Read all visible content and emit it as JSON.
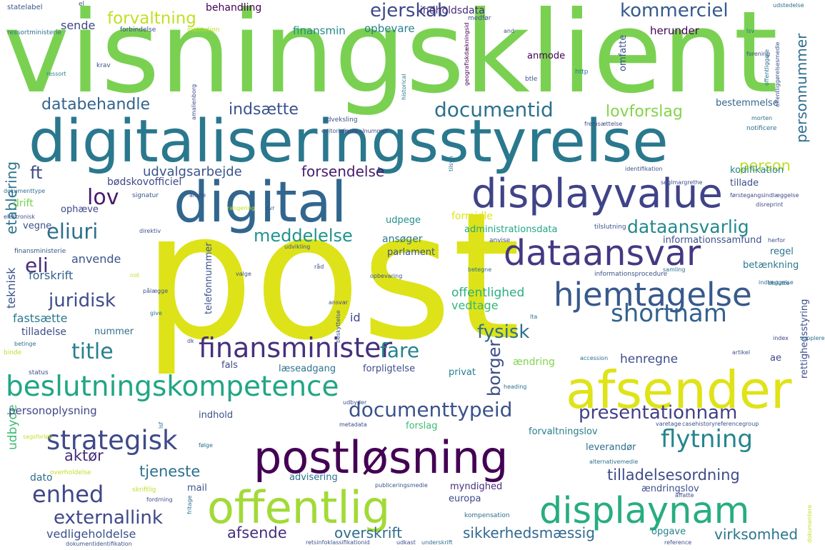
{
  "word_cloud": {
    "words": [
      {
        "text": "visningsklient",
        "color": "#7ad151"
      },
      {
        "text": "post",
        "color": "#dde318"
      },
      {
        "text": "digitaliseringsstyrelse",
        "color": "#2a788e"
      },
      {
        "text": "digital",
        "color": "#31668e"
      },
      {
        "text": "displayvalue",
        "color": "#404387"
      },
      {
        "text": "dataansvar",
        "color": "#453882"
      },
      {
        "text": "hjemtagelse",
        "color": "#38598c"
      },
      {
        "text": "afsender",
        "color": "#dfe318"
      },
      {
        "text": "postløsning",
        "color": "#440154"
      },
      {
        "text": "offentlig",
        "color": "#a2da37"
      },
      {
        "text": "displaynam",
        "color": "#27ad81"
      },
      {
        "text": "beslutningskompetence",
        "color": "#21a685"
      },
      {
        "text": "finansminister",
        "color": "#46307e"
      },
      {
        "text": "shortnam",
        "color": "#33638d"
      },
      {
        "text": "strategisk",
        "color": "#3e4a89"
      },
      {
        "text": "flytning",
        "color": "#25858e"
      },
      {
        "text": "documentid",
        "color": "#2d708e"
      },
      {
        "text": "documenttypeid",
        "color": "#3a538b"
      },
      {
        "text": "presentationnam",
        "color": "#424086"
      },
      {
        "text": "enhed",
        "color": "#3f4788"
      },
      {
        "text": "ejerskab",
        "color": "#3f4889"
      },
      {
        "text": "kommerciel",
        "color": "#375a8c"
      },
      {
        "text": "forvaltning",
        "color": "#c2df23"
      },
      {
        "text": "meddelelse",
        "color": "#20938c"
      },
      {
        "text": "dataansvarlig",
        "color": "#23888e"
      },
      {
        "text": "juridisk",
        "color": "#3e4c8a"
      },
      {
        "text": "eliuri",
        "color": "#2e6f8e"
      },
      {
        "text": "lov",
        "color": "#48196b"
      },
      {
        "text": "eli",
        "color": "#472c7a"
      },
      {
        "text": "title",
        "color": "#27808e"
      },
      {
        "text": "fysisk",
        "color": "#2c718e"
      },
      {
        "text": "fare",
        "color": "#26828e"
      },
      {
        "text": "borger",
        "color": "#3d4e8a"
      },
      {
        "text": "externallink",
        "color": "#3f4889"
      },
      {
        "text": "databehandle",
        "color": "#33638d"
      },
      {
        "text": "indsætte",
        "color": "#3b528b"
      },
      {
        "text": "lovforslag",
        "color": "#84d44b"
      },
      {
        "text": "personnummer",
        "color": "#2e6e8e"
      },
      {
        "text": "etablering",
        "color": "#2c738e"
      },
      {
        "text": "ft",
        "color": "#3e4a89"
      },
      {
        "text": "udvalgsarbejde",
        "color": "#3a548c"
      },
      {
        "text": "forsendelse",
        "color": "#481b6d"
      },
      {
        "text": "person",
        "color": "#c0df25"
      },
      {
        "text": "tilladelsesordning",
        "color": "#3d4d8a"
      },
      {
        "text": "tjeneste",
        "color": "#2d718e"
      },
      {
        "text": "aktør",
        "color": "#472d7b"
      },
      {
        "text": "afsende",
        "color": "#472f7d"
      },
      {
        "text": "overskrift",
        "color": "#2f6c8e"
      },
      {
        "text": "sikkerhedsmæssig",
        "color": "#31688e"
      },
      {
        "text": "virksomhed",
        "color": "#2a768e"
      },
      {
        "text": "vedligeholdelse",
        "color": "#3b528b"
      },
      {
        "text": "udbyde",
        "color": "#3ebc73"
      },
      {
        "text": "offentlighed",
        "color": "#29af7f"
      },
      {
        "text": "vedtage",
        "color": "#35b779"
      },
      {
        "text": "henregne",
        "color": "#3d4e8a"
      },
      {
        "text": "fastsætte",
        "color": "#2a788e"
      },
      {
        "text": "forskrift",
        "color": "#33638d"
      },
      {
        "text": "anvende",
        "color": "#3a548c"
      },
      {
        "text": "teknisk",
        "color": "#3b528b"
      },
      {
        "text": "herunder",
        "color": "#440154"
      },
      {
        "text": "indholdsdata",
        "color": "#472c7a"
      },
      {
        "text": "opbevare",
        "color": "#277f8e"
      },
      {
        "text": "finansmin",
        "color": "#238a8d"
      },
      {
        "text": "sende",
        "color": "#3f4788"
      },
      {
        "text": "behandling",
        "color": "#440154"
      },
      {
        "text": "ansøger",
        "color": "#2a788e"
      },
      {
        "text": "parlament",
        "color": "#3a538b"
      },
      {
        "text": "udpege",
        "color": "#21908d"
      },
      {
        "text": "formidle",
        "color": "#dfe318"
      },
      {
        "text": "administrationsdata",
        "color": "#22a785"
      },
      {
        "text": "informationssamfund",
        "color": "#3b528b"
      },
      {
        "text": "kodifikation",
        "color": "#26828e"
      },
      {
        "text": "tillade",
        "color": "#3d4e8a"
      },
      {
        "text": "drift",
        "color": "#7ad151"
      },
      {
        "text": "ophæve",
        "color": "#3f4889"
      },
      {
        "text": "vegne",
        "color": "#3b528b"
      },
      {
        "text": "bødskovofficiel",
        "color": "#3e4989"
      },
      {
        "text": "telefonnummer",
        "color": "#3a548c"
      },
      {
        "text": "nummer",
        "color": "#2e6f8e"
      },
      {
        "text": "tilladelse",
        "color": "#3e4c8a"
      },
      {
        "text": "id",
        "color": "#3f4889"
      },
      {
        "text": "bestemmelse",
        "color": "#31668e"
      },
      {
        "text": "omfatte",
        "color": "#3a538b"
      },
      {
        "text": "anmode",
        "color": "#440154"
      },
      {
        "text": "regel",
        "color": "#2c728e"
      },
      {
        "text": "betænkning",
        "color": "#2a788e"
      },
      {
        "text": "rettighedsstyring",
        "color": "#3d4e8a"
      },
      {
        "text": "ae",
        "color": "#3f4889"
      },
      {
        "text": "personoplysning",
        "color": "#3f4788"
      },
      {
        "text": "fals",
        "color": "#3f4889"
      },
      {
        "text": "læseadgang",
        "color": "#2c738e"
      },
      {
        "text": "forpligtelse",
        "color": "#3e4c8a"
      },
      {
        "text": "privat",
        "color": "#277f8e"
      },
      {
        "text": "ændring",
        "color": "#84d44b"
      },
      {
        "text": "indhold",
        "color": "#3b528b"
      },
      {
        "text": "forslag",
        "color": "#3ebc73"
      },
      {
        "text": "forvaltningslov",
        "color": "#287d8e"
      },
      {
        "text": "leverandør",
        "color": "#2e6e8e"
      },
      {
        "text": "advisering",
        "color": "#2c718e"
      },
      {
        "text": "myndighed",
        "color": "#472d7b"
      },
      {
        "text": "europa",
        "color": "#3e4a89"
      },
      {
        "text": "ændringslov",
        "color": "#3b528b"
      },
      {
        "text": "dato",
        "color": "#2e6e8e"
      },
      {
        "text": "mail",
        "color": "#3a548c"
      },
      {
        "text": "opgave",
        "color": "#26828e"
      },
      {
        "text": "kompensation",
        "color": "#2e6f8e"
      },
      {
        "text": "udkast",
        "color": "#3e4c8a"
      },
      {
        "text": "statelabel",
        "color": "#3b528b"
      },
      {
        "text": "ressortministerie",
        "color": "#2e6f8e"
      },
      {
        "text": "forbindelse",
        "color": "#3e4a89"
      },
      {
        "text": "institution",
        "color": "#c0df25"
      },
      {
        "text": "el",
        "color": "#3b528b"
      },
      {
        "text": "medfør",
        "color": "#3b528b"
      },
      {
        "text": "and",
        "color": "#3e4a89"
      },
      {
        "text": "lsv",
        "color": "#2c728e"
      },
      {
        "text": "krav",
        "color": "#3b528b"
      },
      {
        "text": "ressort",
        "color": "#26828e"
      },
      {
        "text": "amalienborg",
        "color": "#3e4a89"
      },
      {
        "text": "historical",
        "color": "#2a788e"
      },
      {
        "text": "geografiskdækningsid",
        "color": "#440154"
      },
      {
        "text": "btle",
        "color": "#3b528b"
      },
      {
        "text": "http",
        "color": "#2a788e"
      },
      {
        "text": "forening",
        "color": "#3e4c8a"
      },
      {
        "text": "offentliggøre",
        "color": "#2c728e"
      },
      {
        "text": "offentliggørelsesmedie",
        "color": "#3b528b"
      },
      {
        "text": "udstedelse",
        "color": "#2e6f8e"
      },
      {
        "text": "udveksling",
        "color": "#3b528b"
      },
      {
        "text": "editorialnote",
        "color": "#3b528b"
      },
      {
        "text": "journalnummer",
        "color": "#3e4a89"
      },
      {
        "text": "fremsættelse",
        "color": "#3e4c8a"
      },
      {
        "text": "morten",
        "color": "#2e6f8e"
      },
      {
        "text": "notificere",
        "color": "#2e6f8e"
      },
      {
        "text": "identifikation",
        "color": "#3b528b"
      },
      {
        "text": "førstegangsindlæggelse",
        "color": "#3e4a89"
      },
      {
        "text": "seglmargrethe",
        "color": "#3b528b"
      },
      {
        "text": "tilsyn",
        "color": "#2e6f8e"
      },
      {
        "text": "rangering",
        "color": "#c0df25"
      },
      {
        "text": "cvr",
        "color": "#3b528b"
      },
      {
        "text": "dokumenttype",
        "color": "#2e6f8e"
      },
      {
        "text": "signatur",
        "color": "#3b528b"
      },
      {
        "text": "andre",
        "color": "#3e4a89"
      },
      {
        "text": "elektronisk",
        "color": "#3b528b"
      },
      {
        "text": "direktiv",
        "color": "#3b528b"
      },
      {
        "text": "udvikling",
        "color": "#3b528b"
      },
      {
        "text": "anvise",
        "color": "#3e4a89"
      },
      {
        "text": "tilslutning",
        "color": "#3b528b"
      },
      {
        "text": "herfor",
        "color": "#3e4a89"
      },
      {
        "text": "finansministerie",
        "color": "#3b528b"
      },
      {
        "text": "samling",
        "color": "#2c728e"
      },
      {
        "text": "betegne",
        "color": "#2e6f8e"
      },
      {
        "text": "informationsprocedure",
        "color": "#3b528b"
      },
      {
        "text": "valge",
        "color": "#3b528b"
      },
      {
        "text": "råd",
        "color": "#3e4a89"
      },
      {
        "text": "opbevaring",
        "color": "#3b528b"
      },
      {
        "text": "not",
        "color": "#c0df25"
      },
      {
        "text": "pålægge",
        "color": "#3b528b"
      },
      {
        "text": "give",
        "color": "#2e6f8e"
      },
      {
        "text": "ansvar",
        "color": "#3e4a89"
      },
      {
        "text": "beskyttelse",
        "color": "#3b528b"
      },
      {
        "text": "tilslutte",
        "color": "#2e6f8e"
      },
      {
        "text": "index",
        "color": "#3e4a89"
      },
      {
        "text": "artikel",
        "color": "#3b528b"
      },
      {
        "text": "supplere",
        "color": "#2e6f8e"
      },
      {
        "text": "binde",
        "color": "#c0df25"
      },
      {
        "text": "betinge",
        "color": "#2e6f8e"
      },
      {
        "text": "status",
        "color": "#3b528b"
      },
      {
        "text": "accession",
        "color": "#2e6f8e"
      },
      {
        "text": "heading",
        "color": "#2e6f8e"
      },
      {
        "text": "udbyder",
        "color": "#3b528b"
      },
      {
        "text": "metadata",
        "color": "#3e4a89"
      },
      {
        "text": "varetage",
        "color": "#3b528b"
      },
      {
        "text": "casehistoryreferencegroup",
        "color": "#3b528b"
      },
      {
        "text": "følge",
        "color": "#2e6f8e"
      },
      {
        "text": "overholdelse",
        "color": "#c0df25"
      },
      {
        "text": "skriftlig",
        "color": "#c0df25"
      },
      {
        "text": "alternativemedie",
        "color": "#2e6f8e"
      },
      {
        "text": "publiceringsmedie",
        "color": "#3b528b"
      },
      {
        "text": "affatte",
        "color": "#3e4a89"
      },
      {
        "text": "dokumentidentifikation",
        "color": "#3b528b"
      },
      {
        "text": "retsinfoklassifikationid",
        "color": "#3b528b"
      },
      {
        "text": "underskrift",
        "color": "#2e6f8e"
      },
      {
        "text": "reference",
        "color": "#3b528b"
      },
      {
        "text": "dokumentere",
        "color": "#c0df25"
      },
      {
        "text": "fritage",
        "color": "#2e6f8e"
      },
      {
        "text": "fordrning",
        "color": "#3e4a89"
      },
      {
        "text": "lsf",
        "color": "#2e6f8e"
      },
      {
        "text": "sagsforløb",
        "color": "#c0df25"
      },
      {
        "text": "lta",
        "color": "#2e6f8e"
      },
      {
        "text": "dk",
        "color": "#3b528b"
      },
      {
        "text": "disreprint",
        "color": "#3b528b"
      },
      {
        "text": "indlæggelse",
        "color": "#2e6f8e"
      }
    ]
  }
}
